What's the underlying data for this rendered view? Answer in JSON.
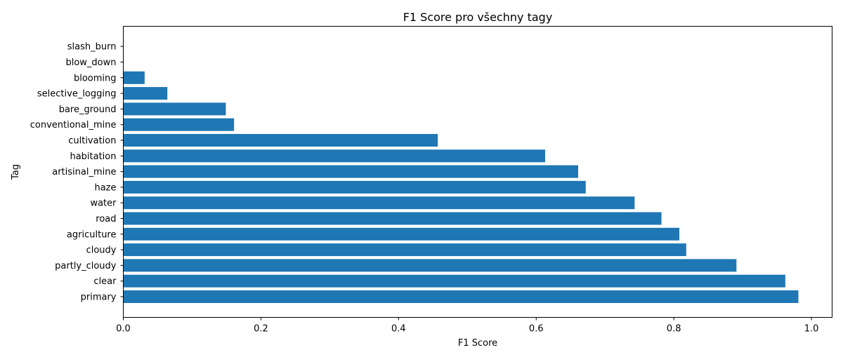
{
  "chart_data": {
    "type": "bar",
    "orientation": "horizontal",
    "title": "F1 Score pro všechny tagy",
    "xlabel": "F1 Score",
    "ylabel": "Tag",
    "xlim": [
      0,
      1.03
    ],
    "xticks": [
      "0.0",
      "0.2",
      "0.4",
      "0.6",
      "0.8",
      "1.0"
    ],
    "xtick_values": [
      0.0,
      0.2,
      0.4,
      0.6,
      0.8,
      1.0
    ],
    "grid": false,
    "bar_color": "#1f77b4",
    "categories": [
      "primary",
      "clear",
      "partly_cloudy",
      "cloudy",
      "agriculture",
      "road",
      "water",
      "haze",
      "artisinal_mine",
      "habitation",
      "cultivation",
      "conventional_mine",
      "bare_ground",
      "selective_logging",
      "blooming",
      "blow_down",
      "slash_burn"
    ],
    "values": [
      0.981,
      0.962,
      0.891,
      0.818,
      0.808,
      0.782,
      0.743,
      0.672,
      0.661,
      0.613,
      0.457,
      0.161,
      0.149,
      0.064,
      0.031,
      0.0,
      0.0
    ]
  }
}
